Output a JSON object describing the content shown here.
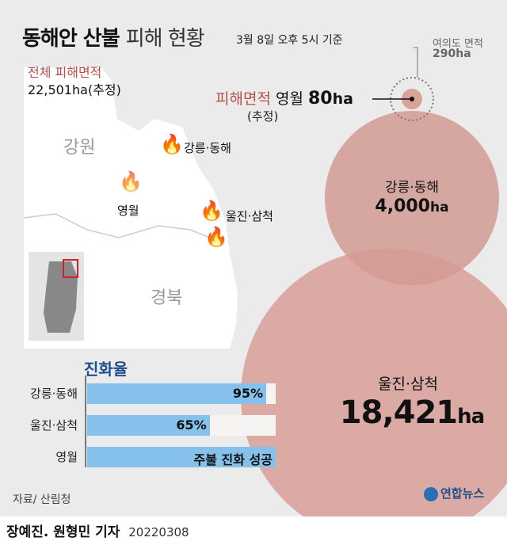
{
  "header": {
    "title_bold": "동해안 산불",
    "title_light": "피해 현황",
    "as_of": "3월 8일 오후 5시 기준"
  },
  "total": {
    "label": "전체 피해면적",
    "value": "22,501ha",
    "note": "(추정)"
  },
  "map": {
    "regions": [
      "강원",
      "경북"
    ],
    "fires": [
      "강릉·동해",
      "영월",
      "울진·삼척"
    ]
  },
  "reference": {
    "label": "여의도 면적",
    "value": "290ha"
  },
  "damage": {
    "label": "피해면적",
    "region": "영월",
    "value": "80",
    "unit": "ha",
    "note": "(추정)"
  },
  "bubbles": [
    {
      "region": "강릉·동해",
      "value": "4,000",
      "unit": "ha"
    },
    {
      "region": "울진·삼척",
      "value": "18,421",
      "unit": "ha"
    }
  ],
  "containment": {
    "title": "진화율",
    "rows": [
      {
        "label": "강릉·동해",
        "value": 95,
        "text": "95%"
      },
      {
        "label": "울진·삼척",
        "value": 65,
        "text": "65%"
      },
      {
        "label": "영월",
        "value": 100,
        "text": "주불 진화 성공"
      }
    ]
  },
  "source": "자료/ 산림청",
  "logo": "연합뉴스",
  "byline": {
    "authors": "장예진. 원형민 기자",
    "date": "20220308"
  },
  "colors": {
    "bubble": "#d9a39c",
    "bar": "#85c1ea",
    "accent_red": "#b5504c",
    "title_blue": "#1f4e8c"
  }
}
